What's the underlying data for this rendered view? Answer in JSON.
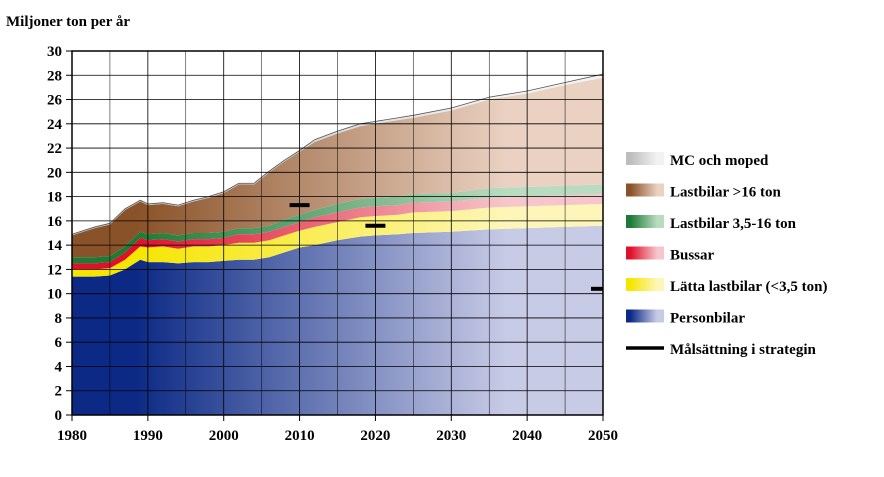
{
  "chart_data": {
    "type": "area",
    "stacked": true,
    "ylabel": "Miljoner ton per år",
    "xlim": [
      1980,
      2050
    ],
    "ylim": [
      0,
      30
    ],
    "xticks": [
      1980,
      1990,
      2000,
      2010,
      2020,
      2030,
      2040,
      2050
    ],
    "yticks": [
      0,
      2,
      4,
      6,
      8,
      10,
      12,
      14,
      16,
      18,
      20,
      22,
      24,
      26,
      28,
      30
    ],
    "grid": "horizontal and vertical",
    "legend_position": "right",
    "x": [
      1980,
      1983,
      1985,
      1987,
      1989,
      1990,
      1992,
      1994,
      1996,
      1998,
      2000,
      2002,
      2004,
      2006,
      2008,
      2010,
      2012,
      2015,
      2018,
      2020,
      2023,
      2025,
      2030,
      2035,
      2040,
      2045,
      2050
    ],
    "series": [
      {
        "name": "Personbilar",
        "color_dark": "#0c2a85",
        "color_light": "#c8cbe6",
        "values": [
          11.4,
          11.4,
          11.5,
          12.0,
          12.8,
          12.6,
          12.6,
          12.5,
          12.6,
          12.6,
          12.7,
          12.8,
          12.8,
          13.0,
          13.4,
          13.8,
          14.0,
          14.4,
          14.7,
          14.8,
          14.9,
          15.0,
          15.1,
          15.3,
          15.4,
          15.5,
          15.6
        ]
      },
      {
        "name": "Lätta lastbilar (<3,5 ton)",
        "color_dark": "#f5e600",
        "color_light": "#fdf6b8",
        "values": [
          0.6,
          0.6,
          0.6,
          0.8,
          1.1,
          1.2,
          1.3,
          1.2,
          1.3,
          1.3,
          1.3,
          1.4,
          1.4,
          1.4,
          1.4,
          1.4,
          1.5,
          1.5,
          1.6,
          1.6,
          1.6,
          1.7,
          1.7,
          1.8,
          1.8,
          1.8,
          1.8
        ]
      },
      {
        "name": "Bussar",
        "color_dark": "#e0102a",
        "color_light": "#f6c6cc",
        "values": [
          0.5,
          0.5,
          0.5,
          0.6,
          0.7,
          0.6,
          0.6,
          0.6,
          0.6,
          0.6,
          0.6,
          0.7,
          0.7,
          0.7,
          0.7,
          0.7,
          0.8,
          0.8,
          0.8,
          0.8,
          0.8,
          0.8,
          0.8,
          0.8,
          0.8,
          0.8,
          0.8
        ]
      },
      {
        "name": "Lastbilar 3,5-16 ton",
        "color_dark": "#1e7b36",
        "color_light": "#b9dcc0",
        "values": [
          0.5,
          0.5,
          0.5,
          0.5,
          0.5,
          0.5,
          0.5,
          0.5,
          0.5,
          0.5,
          0.5,
          0.5,
          0.5,
          0.5,
          0.6,
          0.6,
          0.6,
          0.7,
          0.7,
          0.7,
          0.7,
          0.7,
          0.7,
          0.8,
          0.8,
          0.8,
          0.8
        ]
      },
      {
        "name": "Lastbilar >16 ton",
        "color_dark": "#8a5228",
        "color_light": "#ead1c1",
        "values": [
          1.8,
          2.4,
          2.6,
          3.0,
          2.5,
          2.4,
          2.4,
          2.4,
          2.6,
          2.9,
          3.2,
          3.6,
          3.6,
          4.4,
          4.8,
          5.2,
          5.6,
          5.8,
          6.0,
          6.1,
          6.3,
          6.3,
          6.8,
          7.3,
          7.7,
          8.3,
          8.8
        ]
      },
      {
        "name": "MC och moped",
        "color_dark": "#bdbdbd",
        "color_light": "#f2f2f2",
        "values": [
          0.1,
          0.1,
          0.1,
          0.1,
          0.1,
          0.1,
          0.1,
          0.1,
          0.1,
          0.1,
          0.1,
          0.1,
          0.1,
          0.1,
          0.1,
          0.1,
          0.2,
          0.2,
          0.2,
          0.2,
          0.2,
          0.2,
          0.2,
          0.2,
          0.2,
          0.2,
          0.3
        ]
      }
    ],
    "targets": {
      "name": "Målsättning i strategin",
      "color": "#000000",
      "points": [
        {
          "x": 2010,
          "y": 17.3
        },
        {
          "x": 2020,
          "y": 15.6
        },
        {
          "x": 2050,
          "y": 10.4
        }
      ]
    }
  }
}
